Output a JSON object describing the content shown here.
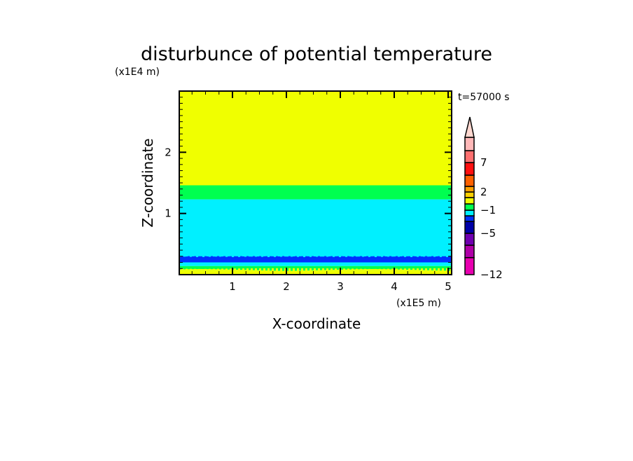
{
  "chart_data": {
    "type": "heatmap",
    "title": "disturbunce of potential temperature",
    "xlabel": "X-coordinate",
    "ylabel": "Z-coordinate",
    "x_unit": "(x1E5 m)",
    "y_unit": "(x1E4 m)",
    "time_label": "t=57000 s",
    "xlim": [
      0,
      5.12
    ],
    "ylim": [
      0,
      3
    ],
    "x_ticks": [
      "1",
      "2",
      "3",
      "4",
      "5"
    ],
    "y_ticks": [
      "1",
      "2"
    ],
    "bands": [
      {
        "z0": 1.46,
        "z1": 3.0,
        "color": "#f0ff00"
      },
      {
        "z0": 1.23,
        "z1": 1.46,
        "color": "#00ff50"
      },
      {
        "z0": 0.28,
        "z1": 1.23,
        "color": "#00f0ff"
      },
      {
        "z0": 0.2,
        "z1": 0.28,
        "color": "#0030ff"
      },
      {
        "z0": 0.14,
        "z1": 0.2,
        "color": "#00f0ff"
      },
      {
        "z0": 0.06,
        "z1": 0.14,
        "color": "#00ff50"
      },
      {
        "z0": 0.0,
        "z1": 0.06,
        "color": "#f0ff00"
      }
    ],
    "colorbar": {
      "labels": [
        "-12",
        "-5",
        "-1",
        "2",
        "7"
      ],
      "colors": [
        "#e800b0",
        "#b000a8",
        "#7000b0",
        "#0000a8",
        "#0030ff",
        "#00f0ff",
        "#00ff50",
        "#f0ff00",
        "#ffd000",
        "#ffa000",
        "#ff6000",
        "#ff1010",
        "#ff7070",
        "#ffb8b8"
      ],
      "extend_color": "#ffd8d0"
    }
  }
}
